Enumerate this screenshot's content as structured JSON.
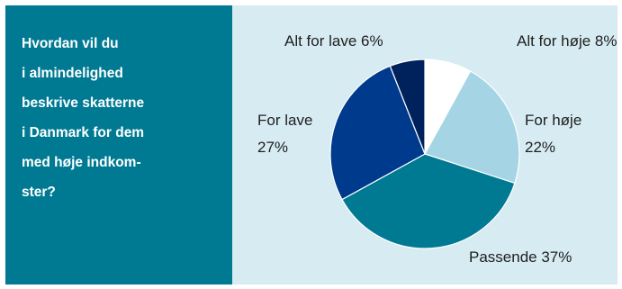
{
  "question": {
    "lines": [
      "Hvordan vil du",
      "i almindelighed",
      "beskrive skatterne",
      "i Danmark for dem",
      "med høje indkom-",
      "ster?"
    ]
  },
  "chart_data": {
    "type": "pie",
    "title": "",
    "slices": [
      {
        "label": "Alt for høje",
        "value": 8,
        "value_label": "8%",
        "color": "#ffffff"
      },
      {
        "label": "For høje",
        "value": 22,
        "value_label": "22%",
        "color": "#a5d5e4"
      },
      {
        "label": "Passende",
        "value": 37,
        "value_label": "37%",
        "color": "#007a93"
      },
      {
        "label": "For lave",
        "value": 27,
        "value_label": "27%",
        "color": "#003a8c"
      },
      {
        "label": "Alt for lave",
        "value": 6,
        "value_label": "6%",
        "color": "#00225c"
      }
    ],
    "start": "12 o'clock",
    "direction": "clockwise",
    "legend": "none"
  },
  "colors": {
    "question_background": "#007a93",
    "chart_background": "#d7ebf2"
  }
}
